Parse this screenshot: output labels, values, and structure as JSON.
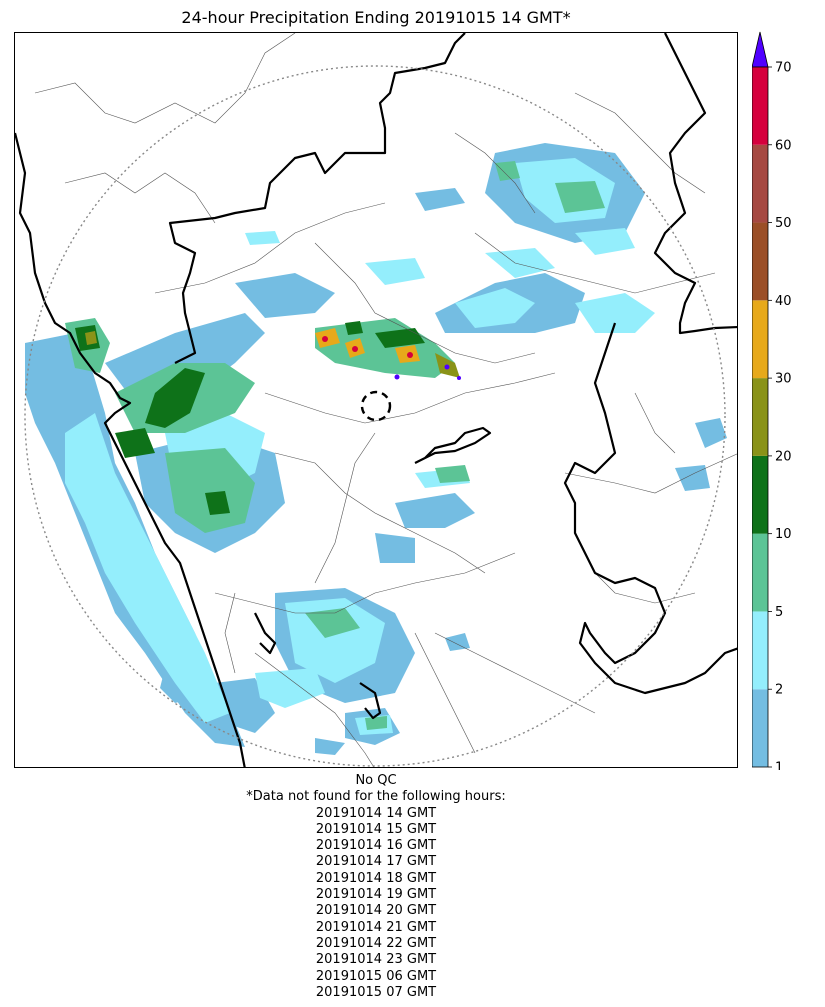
{
  "title": "24-hour Precipitation Ending 20191015 14 GMT*",
  "qc_status": "No QC",
  "missing_note": "*Data not found for the following hours:",
  "missing_hours": [
    "20191014 14 GMT",
    "20191014 15 GMT",
    "20191014 16 GMT",
    "20191014 17 GMT",
    "20191014 18 GMT",
    "20191014 19 GMT",
    "20191014 20 GMT",
    "20191014 21 GMT",
    "20191014 22 GMT",
    "20191014 23 GMT",
    "20191015 06 GMT",
    "20191015 07 GMT"
  ],
  "colorbar": {
    "ticks": [
      "1",
      "2",
      "5",
      "10",
      "20",
      "30",
      "40",
      "50",
      "60",
      "70"
    ],
    "colors": [
      "#74bde2",
      "#94eefc",
      "#5cc496",
      "#0e7219",
      "#8a9318",
      "#e7a91a",
      "#9b4f27",
      "#a64942",
      "#d5003d"
    ],
    "extend_max_color": "#5000ff"
  },
  "map_colors": {
    "light_blue": "#74bde2",
    "cyan": "#94eefc",
    "teal": "#5cc496",
    "green": "#0e7219",
    "olive": "#8a9318",
    "orange": "#e7a91a",
    "crimson": "#d5003d",
    "purple": "#5000ff"
  }
}
